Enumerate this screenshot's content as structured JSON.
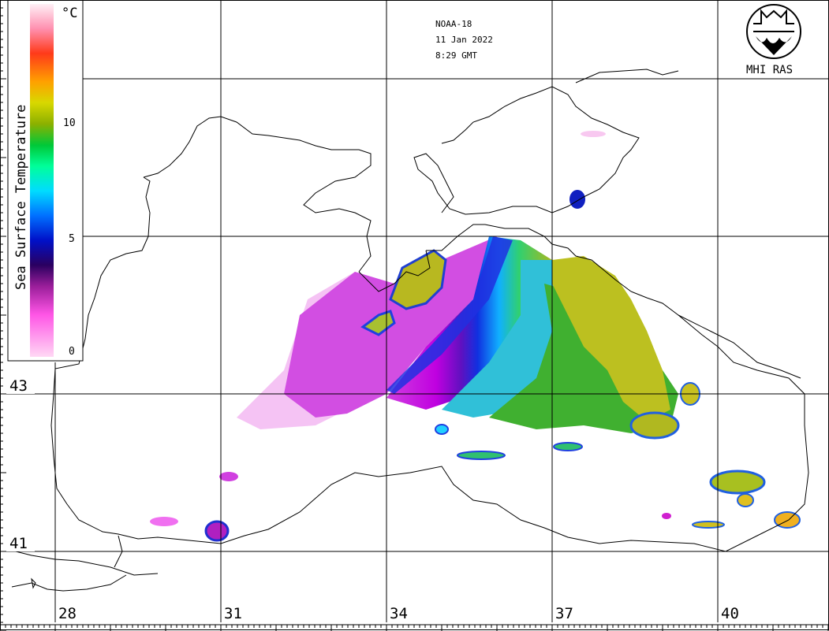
{
  "header": {
    "satellite": "NOAA-18",
    "date": "11 Jan 2022",
    "time": "8:29 GMT"
  },
  "logo": {
    "text": "MHI RAS"
  },
  "colorbar": {
    "title": "Sea Surface Temperature",
    "unit": "°C",
    "ticks": [
      "0",
      "5",
      "10"
    ]
  },
  "axes": {
    "lat_labels": [
      "43",
      "41"
    ],
    "lon_labels": [
      "28",
      "31",
      "34",
      "37",
      "40"
    ]
  },
  "colors": {
    "land": "#ffffff",
    "coast": "#000000",
    "grid": "#000000"
  }
}
